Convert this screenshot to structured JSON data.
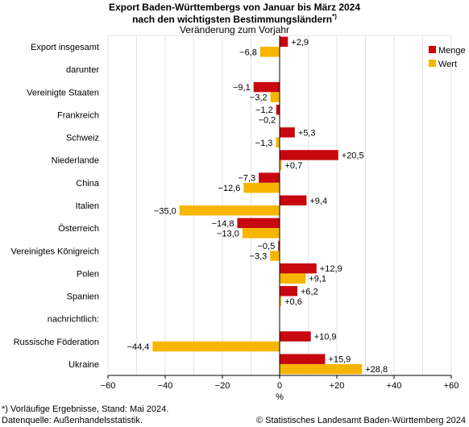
{
  "header": {
    "title_line1": "Export Baden-Württembergs von Januar bis März 2024",
    "title_line2": "nach den wichtigsten Bestimmungsländern",
    "title_marker": "*)",
    "subtitle": "Veränderung zum Vorjahr"
  },
  "footer": {
    "note": "*) Vorläufige Ergebnisse, Stand: Mai 2024.",
    "source": "Datenquelle: Außenhandelsstatistik.",
    "copyright": "© Statistisches Landesamt Baden-Württemberg 2024"
  },
  "colors": {
    "menge": "#c8070e",
    "wert": "#f7b500",
    "grid": "#e3e3e3"
  },
  "chart_data": {
    "type": "bar",
    "orientation": "horizontal",
    "xlabel": "%",
    "xlim": [
      -60,
      60
    ],
    "xticks": [
      "−60",
      "−40",
      "−20",
      "0",
      "+20",
      "+40",
      "+60"
    ],
    "legend_position": "top-right",
    "grid": true,
    "categories": [
      "Export insgesamt",
      "darunter",
      "Vereinigte Staaten",
      "Frankreich",
      "Schweiz",
      "Niederlande",
      "China",
      "Italien",
      "Österreich",
      "Vereinigtes Königreich",
      "Polen",
      "Spanien",
      "nachrichtlich:",
      "Russische Föderation",
      "Ukraine"
    ],
    "series": [
      {
        "name": "Menge",
        "values": [
          2.9,
          null,
          -9.1,
          -1.2,
          5.3,
          20.5,
          -7.3,
          9.4,
          -14.8,
          -0.5,
          12.9,
          6.2,
          null,
          10.9,
          15.9
        ],
        "labels": [
          "+2,9",
          "",
          "−9,1",
          "−1,2",
          "+5,3",
          "+20,5",
          "−7,3",
          "+9,4",
          "−14,8",
          "−0,5",
          "+12,9",
          "+6,2",
          "",
          "+10,9",
          "+15,9"
        ]
      },
      {
        "name": "Wert",
        "values": [
          -6.8,
          null,
          -3.2,
          -0.2,
          -1.3,
          0.7,
          -12.6,
          -35.0,
          -13.0,
          -3.3,
          9.1,
          0.6,
          null,
          -44.4,
          28.8
        ],
        "labels": [
          "−6,8",
          "",
          "−3,2",
          "−0,2",
          "−1,3",
          "+0,7",
          "−12,6",
          "−35,0",
          "−13,0",
          "−3,3",
          "+9,1",
          "+0,6",
          "",
          "−44,4",
          "+28,8"
        ]
      }
    ]
  }
}
